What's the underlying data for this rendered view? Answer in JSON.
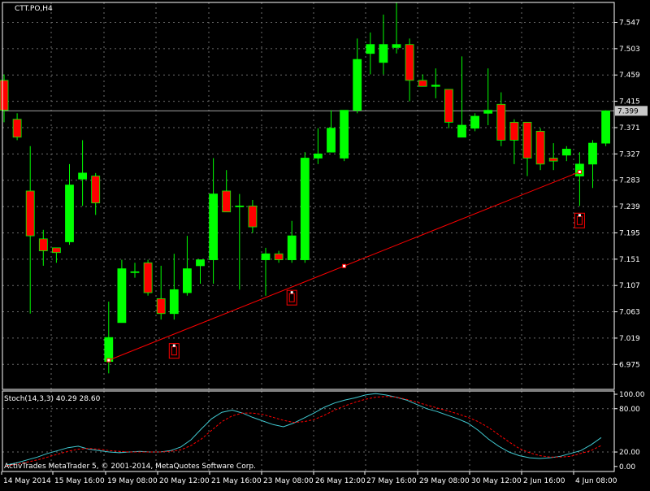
{
  "window": {
    "symbol_title": "CTT.PO,H4",
    "current_price_label": "7.399",
    "stoch_header": "Stoch(14,3,3) 40.29 28.60",
    "copyright": "ActivTrades MetaTrader 5, © 2001-2014, MetaQuotes Software Corp."
  },
  "colors": {
    "background": "#000000",
    "bull": "#00ff00",
    "bear": "#ff0000",
    "grid": "#6b6b6b",
    "main_line": "#40c8d0",
    "signal_line": "#ff0000",
    "trendline": "#ff0000",
    "text": "#ffffff"
  },
  "chart_data": [
    {
      "type": "candlestick",
      "title": "CTT.PO,H4",
      "ylim": [
        6.95,
        7.59
      ],
      "y_ticks": [
        "7.547",
        "7.503",
        "7.459",
        "7.415",
        "7.371",
        "7.327",
        "7.283",
        "7.239",
        "7.195",
        "7.151",
        "7.107",
        "7.063",
        "7.019",
        "6.975"
      ],
      "x_ticks": [
        "14 May 2014",
        "15 May 16:00",
        "19 May 08:00",
        "20 May 12:00",
        "21 May 16:00",
        "23 May 08:00",
        "26 May 12:00",
        "27 May 16:00",
        "29 May 08:00",
        "30 May 12:00",
        "2 Jun 16:00",
        "4 Jun 08:00"
      ],
      "current_price": 7.399,
      "candles": [
        {
          "o": 7.45,
          "h": 7.46,
          "l": 7.38,
          "c": 7.4
        },
        {
          "o": 7.385,
          "h": 7.395,
          "l": 7.35,
          "c": 7.355
        },
        {
          "o": 7.265,
          "h": 7.34,
          "l": 7.06,
          "c": 7.19
        },
        {
          "o": 7.185,
          "h": 7.2,
          "l": 7.14,
          "c": 7.165
        },
        {
          "o": 7.17,
          "h": 7.17,
          "l": 7.145,
          "c": 7.162
        },
        {
          "o": 7.18,
          "h": 7.31,
          "l": 7.175,
          "c": 7.275
        },
        {
          "o": 7.285,
          "h": 7.35,
          "l": 7.24,
          "c": 7.295
        },
        {
          "o": 7.29,
          "h": 7.295,
          "l": 7.225,
          "c": 7.245
        },
        {
          "o": 6.98,
          "h": 7.08,
          "l": 6.96,
          "c": 7.02
        },
        {
          "o": 7.045,
          "h": 7.15,
          "l": 7.045,
          "c": 7.135
        },
        {
          "o": 7.13,
          "h": 7.145,
          "l": 7.12,
          "c": 7.13
        },
        {
          "o": 7.145,
          "h": 7.15,
          "l": 7.09,
          "c": 7.095
        },
        {
          "o": 7.085,
          "h": 7.14,
          "l": 7.05,
          "c": 7.06
        },
        {
          "o": 7.06,
          "h": 7.16,
          "l": 7.05,
          "c": 7.1
        },
        {
          "o": 7.095,
          "h": 7.19,
          "l": 7.09,
          "c": 7.135
        },
        {
          "o": 7.14,
          "h": 7.15,
          "l": 7.11,
          "c": 7.15
        },
        {
          "o": 7.15,
          "h": 7.32,
          "l": 7.11,
          "c": 7.26
        },
        {
          "o": 7.265,
          "h": 7.3,
          "l": 7.23,
          "c": 7.23
        },
        {
          "o": 7.24,
          "h": 7.26,
          "l": 7.1,
          "c": 7.24
        },
        {
          "o": 7.24,
          "h": 7.25,
          "l": 7.195,
          "c": 7.205
        },
        {
          "o": 7.15,
          "h": 7.17,
          "l": 7.09,
          "c": 7.16
        },
        {
          "o": 7.16,
          "h": 7.165,
          "l": 7.145,
          "c": 7.15
        },
        {
          "o": 7.15,
          "h": 7.215,
          "l": 7.145,
          "c": 7.19
        },
        {
          "o": 7.15,
          "h": 7.33,
          "l": 7.145,
          "c": 7.32
        },
        {
          "o": 7.32,
          "h": 7.37,
          "l": 7.31,
          "c": 7.327
        },
        {
          "o": 7.33,
          "h": 7.4,
          "l": 7.33,
          "c": 7.37
        },
        {
          "o": 7.32,
          "h": 7.4,
          "l": 7.315,
          "c": 7.4
        },
        {
          "o": 7.4,
          "h": 7.52,
          "l": 7.395,
          "c": 7.485
        },
        {
          "o": 7.495,
          "h": 7.53,
          "l": 7.46,
          "c": 7.51
        },
        {
          "o": 7.48,
          "h": 7.56,
          "l": 7.46,
          "c": 7.51
        },
        {
          "o": 7.505,
          "h": 7.58,
          "l": 7.495,
          "c": 7.51
        },
        {
          "o": 7.51,
          "h": 7.52,
          "l": 7.415,
          "c": 7.45
        },
        {
          "o": 7.45,
          "h": 7.46,
          "l": 7.44,
          "c": 7.44
        },
        {
          "o": 7.44,
          "h": 7.47,
          "l": 7.42,
          "c": 7.442
        },
        {
          "o": 7.435,
          "h": 7.435,
          "l": 7.37,
          "c": 7.38
        },
        {
          "o": 7.355,
          "h": 7.49,
          "l": 7.355,
          "c": 7.375
        },
        {
          "o": 7.37,
          "h": 7.395,
          "l": 7.365,
          "c": 7.39
        },
        {
          "o": 7.395,
          "h": 7.47,
          "l": 7.375,
          "c": 7.4
        },
        {
          "o": 7.41,
          "h": 7.43,
          "l": 7.34,
          "c": 7.35
        },
        {
          "o": 7.38,
          "h": 7.385,
          "l": 7.31,
          "c": 7.35
        },
        {
          "o": 7.38,
          "h": 7.38,
          "l": 7.29,
          "c": 7.32
        },
        {
          "o": 7.365,
          "h": 7.37,
          "l": 7.3,
          "c": 7.31
        },
        {
          "o": 7.32,
          "h": 7.345,
          "l": 7.3,
          "c": 7.315
        },
        {
          "o": 7.325,
          "h": 7.34,
          "l": 7.315,
          "c": 7.335
        },
        {
          "o": 7.29,
          "h": 7.33,
          "l": 7.24,
          "c": 7.31
        },
        {
          "o": 7.31,
          "h": 7.35,
          "l": 7.27,
          "c": 7.345
        },
        {
          "o": 7.345,
          "h": 7.4,
          "l": 7.34,
          "c": 7.399
        }
      ],
      "trendline": {
        "start": {
          "candle": 8,
          "price": 6.982
        },
        "end": {
          "candle": 44,
          "price": 7.297
        }
      },
      "fractals": [
        {
          "candle": 13,
          "price": 6.999
        },
        {
          "candle": 22,
          "price": 7.088
        },
        {
          "candle": 44,
          "price": 7.217
        }
      ]
    },
    {
      "type": "line",
      "title": "Stoch(14,3,3) 40.29 28.60",
      "ylim": [
        0,
        100
      ],
      "y_ticks": [
        "100.00",
        "80.00",
        "20.00",
        "0.00"
      ],
      "series": [
        {
          "name": "main",
          "values": [
            2,
            5,
            9,
            13,
            18,
            22,
            26,
            28,
            24,
            22,
            20,
            19,
            20,
            21,
            20,
            20,
            22,
            27,
            37,
            52,
            66,
            75,
            78,
            74,
            68,
            63,
            58,
            55,
            60,
            67,
            74,
            82,
            88,
            92,
            95,
            99,
            101,
            99,
            96,
            92,
            86,
            80,
            76,
            71,
            66,
            60,
            50,
            38,
            28,
            20,
            15,
            12,
            11,
            12,
            14,
            18,
            22,
            30,
            40
          ]
        },
        {
          "name": "signal",
          "values": [
            1,
            3,
            6,
            9,
            13,
            17,
            21,
            24,
            25,
            24,
            22,
            21,
            20,
            20,
            20,
            20,
            21,
            23,
            29,
            38,
            50,
            62,
            70,
            74,
            74,
            72,
            68,
            64,
            61,
            62,
            65,
            71,
            78,
            84,
            89,
            93,
            96,
            97,
            96,
            93,
            89,
            85,
            81,
            77,
            73,
            68,
            62,
            54,
            44,
            34,
            25,
            19,
            15,
            13,
            13,
            14,
            18,
            22,
            29
          ]
        }
      ]
    }
  ]
}
